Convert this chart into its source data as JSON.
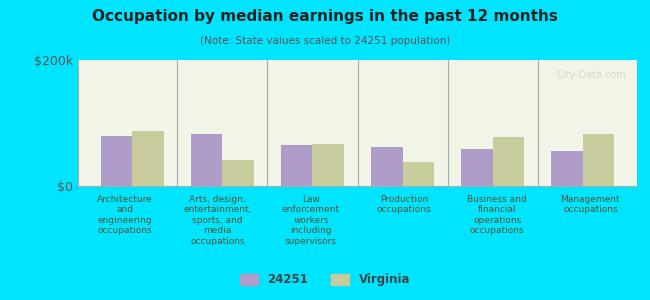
{
  "title": "Occupation by median earnings in the past 12 months",
  "subtitle": "(Note: State values scaled to 24251 population)",
  "categories": [
    "Architecture\nand\nengineering\noccupations",
    "Arts, design,\nentertainment,\nsports, and\nmedia\noccupations",
    "Law\nenforcement\nworkers\nincluding\nsupervisors",
    "Production\noccupations",
    "Business and\nfinancial\noperations\noccupations",
    "Management\noccupations"
  ],
  "values_24251": [
    80000,
    82000,
    65000,
    62000,
    58000,
    55000
  ],
  "values_virginia": [
    88000,
    42000,
    67000,
    38000,
    78000,
    82000
  ],
  "color_24251": "#b09cc8",
  "color_virginia": "#c8cc9c",
  "background_color": "#00e5ff",
  "plot_bg_top": "#f0f5e8",
  "plot_bg_bottom": "#e8f5e0",
  "ylim": [
    0,
    200000
  ],
  "yticks": [
    0,
    200000
  ],
  "ytick_labels": [
    "$0",
    "$200k"
  ],
  "legend_label_24251": "24251",
  "legend_label_virginia": "Virginia",
  "watermark": "City-Data.com"
}
